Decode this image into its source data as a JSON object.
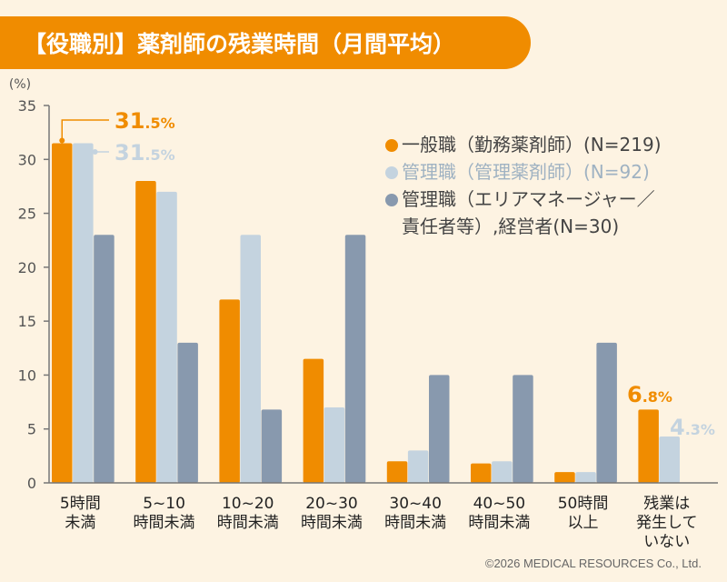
{
  "title": "【役職別】薬剤師の残業時間（月間平均）",
  "copyright": "©2026 MEDICAL RESOURCES Co., Ltd.",
  "colors": {
    "series1": "#f08c00",
    "series2": "#c4d3df",
    "series3": "#8899ae",
    "axis": "#777777"
  },
  "legend": [
    {
      "label": "一般職（勤務薬剤師）(N=219)",
      "color": "#f08c00",
      "text_color": "#444444"
    },
    {
      "label": "管理職（管理薬剤師）(N=92)",
      "color": "#c4d3df",
      "text_color": "#9fb2c2"
    },
    {
      "label": "管理職（エリアマネージャー／\n責任者等）,経営者(N=30)",
      "color": "#8899ae",
      "text_color": "#444444"
    }
  ],
  "chart_data": {
    "type": "bar",
    "ylabel": "(%)",
    "ylim": [
      0,
      35
    ],
    "yticks": [
      0,
      5,
      10,
      15,
      20,
      25,
      30,
      35
    ],
    "categories": [
      "5時間\n未満",
      "5~10\n時間未満",
      "10~20\n時間未満",
      "20~30\n時間未満",
      "30~40\n時間未満",
      "40~50\n時間未満",
      "50時間\n以上",
      "残業は\n発生して\nいない"
    ],
    "series": [
      {
        "name": "一般職（勤務薬剤師）(N=219)",
        "values": [
          31.5,
          28,
          17,
          11.5,
          2,
          1.8,
          1,
          6.8
        ]
      },
      {
        "name": "管理職（管理薬剤師）(N=92)",
        "values": [
          31.5,
          27,
          23,
          7,
          3,
          2,
          1,
          4.3
        ]
      },
      {
        "name": "管理職（エリアマネージャー／責任者等）,経営者(N=30)",
        "values": [
          23,
          13,
          6.8,
          23,
          10,
          10,
          13,
          0
        ]
      }
    ],
    "annotations": [
      {
        "series": 0,
        "category": 0,
        "big": "31",
        "small": ".5%"
      },
      {
        "series": 1,
        "category": 0,
        "big": "31",
        "small": ".5%"
      },
      {
        "series": 0,
        "category": 7,
        "big": "6",
        "small": ".8%"
      },
      {
        "series": 1,
        "category": 7,
        "big": "4",
        "small": ".3%"
      }
    ]
  }
}
